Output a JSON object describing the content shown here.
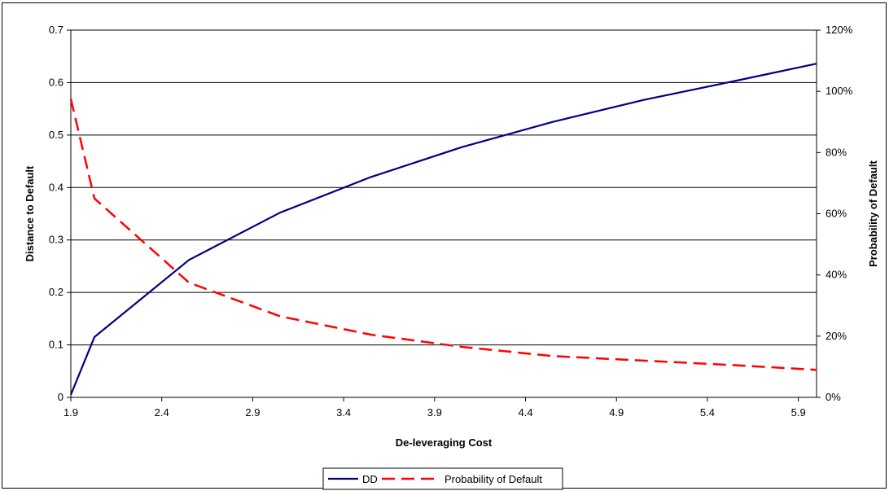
{
  "chart_data": {
    "type": "line",
    "title": "",
    "xlabel": "De-leveraging Cost",
    "ylabel_left": "Distance to Default",
    "ylabel_right": "Probability of Default",
    "x_ticks": [
      "1.9",
      "2.4",
      "2.9",
      "3.4",
      "3.9",
      "4.4",
      "4.9",
      "5.4",
      "5.9"
    ],
    "y_left_ticks": [
      "0",
      "0.1",
      "0.2",
      "0.3",
      "0.4",
      "0.5",
      "0.6",
      "0.7"
    ],
    "y_right_ticks": [
      "0%",
      "20%",
      "40%",
      "60%",
      "80%",
      "100%",
      "120%"
    ],
    "xlim": [
      1.9,
      6.0
    ],
    "ylim_left": [
      0,
      0.7
    ],
    "ylim_right": [
      0,
      1.2
    ],
    "grid": "horizontal",
    "legend_position": "bottom",
    "series": [
      {
        "name": "DD",
        "axis": "left",
        "color": "#000080",
        "style": "solid",
        "x": [
          1.9,
          2.03,
          2.55,
          3.05,
          3.55,
          4.05,
          4.55,
          5.05,
          5.55,
          6.0
        ],
        "values": [
          0.005,
          0.115,
          0.262,
          0.352,
          0.42,
          0.477,
          0.525,
          0.567,
          0.603,
          0.636
        ]
      },
      {
        "name": "Probability of Default",
        "axis": "right",
        "color": "#ff0000",
        "style": "dashed",
        "x": [
          1.9,
          2.03,
          2.55,
          3.05,
          3.55,
          4.05,
          4.55,
          5.05,
          5.55,
          6.0
        ],
        "values": [
          0.975,
          0.65,
          0.375,
          0.265,
          0.205,
          0.165,
          0.135,
          0.12,
          0.105,
          0.09
        ]
      }
    ]
  }
}
